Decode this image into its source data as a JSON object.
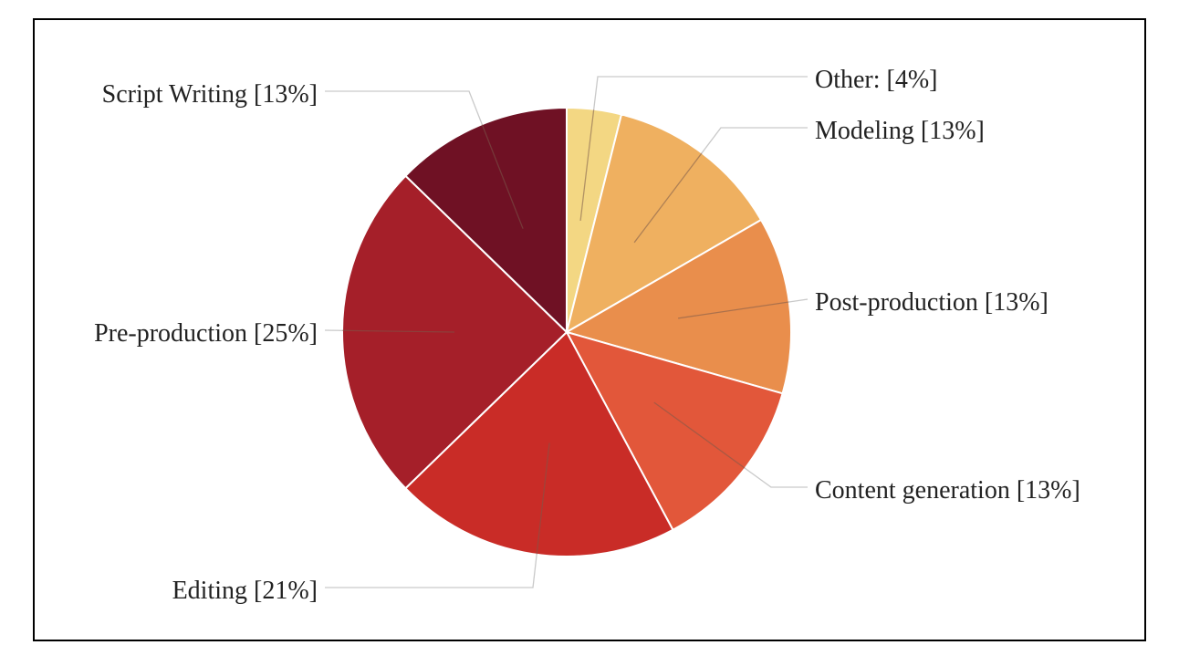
{
  "chart_data": {
    "type": "pie",
    "slices": [
      {
        "label": "Other: [4%]",
        "value": 4,
        "color": "#f3d783"
      },
      {
        "label": "Modeling [13%]",
        "value": 13,
        "color": "#efb060"
      },
      {
        "label": "Post-production [13%]",
        "value": 13,
        "color": "#e98e4c"
      },
      {
        "label": "Content generation [13%]",
        "value": 13,
        "color": "#e2573a"
      },
      {
        "label": "Editing [21%]",
        "value": 21,
        "color": "#c92c27"
      },
      {
        "label": "Pre-production [25%]",
        "value": 25,
        "color": "#a51f29"
      },
      {
        "label": "Script Writing [13%]",
        "value": 13,
        "color": "#6f1124"
      }
    ],
    "start": "12 o'clock",
    "direction": "clockwise",
    "legend": "none"
  }
}
